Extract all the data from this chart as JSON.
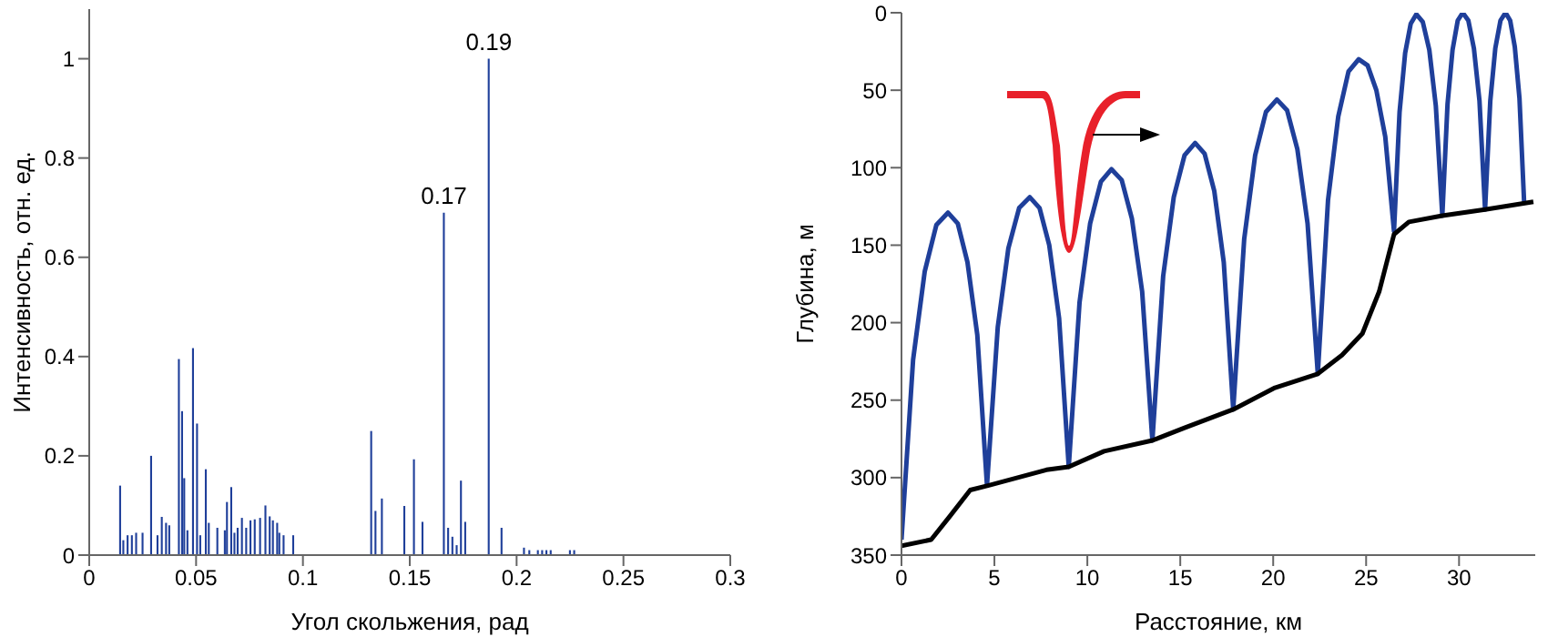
{
  "chart_data": [
    {
      "type": "bar",
      "xlabel": "Угол скольжения, рад",
      "ylabel": "Интенсивность, отн. ед.",
      "color": "#1f3f9a",
      "x": [
        0.0145,
        0.016,
        0.018,
        0.02,
        0.022,
        0.025,
        0.029,
        0.032,
        0.034,
        0.036,
        0.0375,
        0.042,
        0.0435,
        0.0445,
        0.046,
        0.0486,
        0.0505,
        0.052,
        0.0546,
        0.056,
        0.06,
        0.0635,
        0.0645,
        0.0665,
        0.068,
        0.0695,
        0.0715,
        0.0735,
        0.0755,
        0.0775,
        0.08,
        0.0825,
        0.0845,
        0.086,
        0.088,
        0.089,
        0.091,
        0.0955,
        0.132,
        0.134,
        0.137,
        0.1475,
        0.152,
        0.156,
        0.166,
        0.168,
        0.17,
        0.172,
        0.174,
        0.176,
        0.187,
        0.193,
        0.2035,
        0.206,
        0.21,
        0.212,
        0.214,
        0.216,
        0.225,
        0.227
      ],
      "values": [
        0.14,
        0.03,
        0.04,
        0.04,
        0.045,
        0.045,
        0.2,
        0.04,
        0.077,
        0.065,
        0.06,
        0.395,
        0.29,
        0.155,
        0.05,
        0.417,
        0.265,
        0.04,
        0.173,
        0.065,
        0.055,
        0.05,
        0.107,
        0.137,
        0.045,
        0.055,
        0.075,
        0.055,
        0.07,
        0.072,
        0.075,
        0.1,
        0.078,
        0.07,
        0.065,
        0.045,
        0.04,
        0.04,
        0.25,
        0.089,
        0.114,
        0.099,
        0.193,
        0.067,
        0.69,
        0.055,
        0.037,
        0.02,
        0.15,
        0.067,
        1.0,
        0.055,
        0.015,
        0.01,
        0.01,
        0.01,
        0.01,
        0.01,
        0.01,
        0.01
      ],
      "xlim": [
        0,
        0.3
      ],
      "xticks": [
        0,
        0.05,
        0.1,
        0.15,
        0.2,
        0.25,
        0.3
      ],
      "ylim": [
        0,
        1.1
      ],
      "yticks": [
        0,
        0.2,
        0.4,
        0.6,
        0.8,
        1
      ],
      "annotations": [
        {
          "text": "0.17",
          "x": 0.166,
          "y": 0.69
        },
        {
          "text": "0.19",
          "x": 0.187,
          "y": 1.0
        }
      ]
    },
    {
      "type": "line",
      "xlabel": "Расстояние, км",
      "ylabel": "Глубина, м",
      "xlim": [
        0,
        34.1
      ],
      "xticks": [
        0,
        5,
        10,
        15,
        20,
        25,
        30
      ],
      "ylim": [
        350,
        0
      ],
      "yticks": [
        0,
        50,
        100,
        150,
        200,
        250,
        300,
        350
      ],
      "series": [
        {
          "color": "#1f3f9a",
          "x": [
            0,
            0.625,
            1.25,
            1.875,
            2.5,
            3.03,
            3.55,
            4.08,
            4.6,
            5.18,
            5.75,
            6.33,
            6.9,
            7.43,
            7.95,
            8.48,
            9.0,
            9.58,
            10.15,
            10.73,
            11.3,
            11.85,
            12.4,
            12.95,
            13.5,
            14.08,
            14.65,
            15.23,
            15.8,
            16.31,
            16.83,
            17.34,
            17.85,
            18.44,
            19.03,
            19.61,
            20.2,
            20.75,
            21.3,
            21.85,
            22.4,
            22.95,
            23.5,
            24.05,
            24.6,
            25.08,
            25.55,
            26.03,
            26.5,
            26.8,
            27.1,
            27.4,
            27.7,
            28.05,
            28.4,
            28.75,
            29.1,
            29.38,
            29.65,
            29.93,
            30.2,
            30.5,
            30.8,
            31.1,
            31.4,
            31.68,
            31.95,
            32.23,
            32.5,
            32.75,
            33.0,
            33.25,
            33.5
          ],
          "values": [
            340,
            224,
            167,
            137,
            129,
            136,
            161,
            208,
            305,
            203,
            152,
            126,
            119,
            126,
            150,
            197,
            293,
            187,
            136,
            109,
            101,
            108,
            133,
            180,
            276,
            170,
            119,
            92,
            84,
            91,
            115,
            161,
            256,
            146,
            92,
            64,
            56,
            63,
            88,
            136,
            233,
            121,
            67,
            38,
            30,
            34,
            50,
            80,
            141,
            64,
            26,
            7,
            1,
            6,
            24,
            60,
            131,
            59,
            24,
            5,
            0,
            5,
            23,
            57,
            127,
            57,
            23,
            5,
            0,
            5,
            22,
            55,
            122
          ]
        },
        {
          "color": "#000000",
          "x": [
            0,
            1.6,
            2.6,
            3.7,
            4.7,
            7.8,
            9.0,
            10.9,
            13.5,
            15.2,
            17.85,
            20.1,
            22.4,
            23.7,
            24.8,
            25.7,
            26.5,
            27.3,
            29.1,
            31.4,
            34.0
          ],
          "values": [
            344,
            340,
            325,
            308,
            305,
            295,
            293,
            283,
            276,
            268,
            256,
            242,
            233,
            221,
            207,
            180,
            143,
            135,
            131,
            127,
            122
          ]
        }
      ]
    }
  ]
}
